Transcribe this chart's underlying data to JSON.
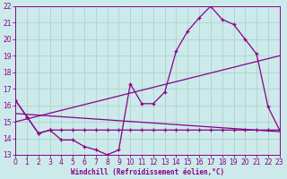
{
  "bg_color": "#cceaea",
  "grid_color": "#aacccc",
  "line_color": "#880088",
  "xlabel": "Windchill (Refroidissement éolien,°C)",
  "xlim": [
    0,
    23
  ],
  "ylim": [
    13,
    22
  ],
  "xticks": [
    0,
    1,
    2,
    3,
    4,
    5,
    6,
    7,
    8,
    9,
    10,
    11,
    12,
    13,
    14,
    15,
    16,
    17,
    18,
    19,
    20,
    21,
    22,
    23
  ],
  "yticks": [
    13,
    14,
    15,
    16,
    17,
    18,
    19,
    20,
    21,
    22
  ],
  "curve1_x": [
    0,
    1,
    2,
    3,
    4,
    5,
    6,
    7,
    8,
    9,
    10,
    11,
    12,
    13,
    14,
    15,
    16,
    17,
    18,
    19,
    20,
    21,
    22,
    23
  ],
  "curve1_y": [
    16.3,
    15.3,
    14.3,
    14.5,
    13.9,
    13.9,
    13.5,
    13.3,
    13.0,
    13.3,
    17.3,
    16.1,
    16.1,
    16.8,
    19.3,
    20.5,
    21.3,
    22.0,
    21.2,
    20.9,
    20.0,
    19.1,
    15.9,
    14.5
  ],
  "curve2_x": [
    0,
    1,
    2,
    3,
    4,
    5,
    6,
    7,
    8,
    9,
    10,
    11,
    12,
    13,
    14,
    15,
    16,
    17,
    18,
    19,
    20,
    21,
    22,
    23
  ],
  "curve2_y": [
    16.3,
    15.3,
    14.3,
    14.5,
    14.5,
    14.5,
    14.5,
    14.5,
    14.5,
    14.5,
    14.5,
    14.5,
    14.5,
    14.5,
    14.5,
    14.5,
    14.5,
    14.5,
    14.5,
    14.5,
    14.5,
    14.5,
    14.5,
    14.5
  ],
  "line3_x": [
    0,
    23
  ],
  "line3_y": [
    15.0,
    19.0
  ],
  "line4_x": [
    0,
    23
  ],
  "line4_y": [
    15.5,
    14.4
  ],
  "tick_fontsize": 5.5,
  "xlabel_fontsize": 5.5
}
